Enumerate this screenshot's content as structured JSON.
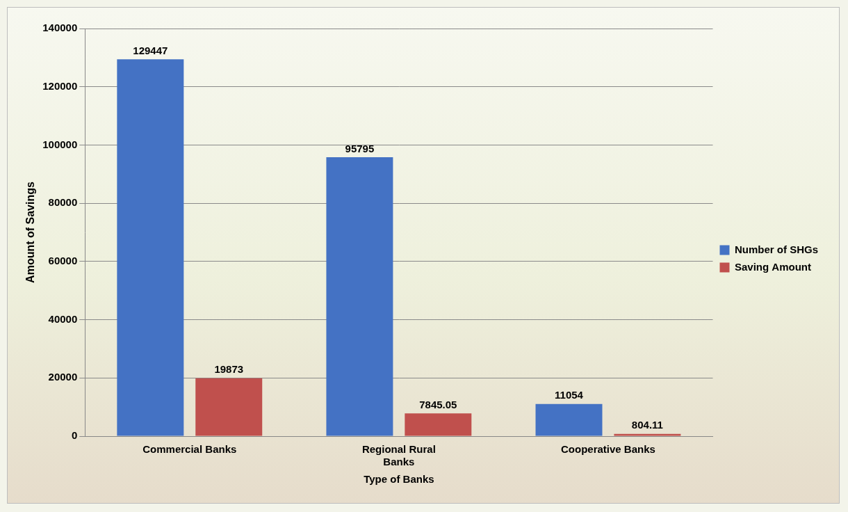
{
  "chart_data": {
    "type": "bar",
    "x_label": "Type of Banks",
    "y_label": "Amount of Savings",
    "categories": [
      "Commercial Banks",
      "Regional Rural Banks",
      "Cooperative Banks"
    ],
    "series": [
      {
        "name": "Number of SHGs",
        "color": "#4472c4",
        "values": [
          129447,
          95795,
          11054
        ]
      },
      {
        "name": "Saving Amount",
        "color": "#c0504d",
        "values": [
          19873,
          7845.05,
          804.11
        ]
      }
    ],
    "ylim": [
      0,
      140000
    ],
    "yticks": [
      0,
      20000,
      40000,
      60000,
      80000,
      100000,
      120000,
      140000
    ],
    "grid": true,
    "legend": "right",
    "data_labels": true
  }
}
